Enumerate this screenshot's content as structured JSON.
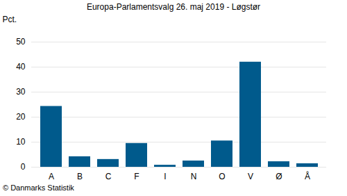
{
  "chart_data": {
    "type": "bar",
    "title": "Europa-Parlamentsvalg 26. maj 2019 - Løgstør",
    "y_label": "Pct.",
    "caption": "© Danmarks Statistik",
    "categories": [
      "A",
      "B",
      "C",
      "F",
      "I",
      "N",
      "O",
      "V",
      "Ø",
      "Å"
    ],
    "values": [
      24.3,
      4.2,
      3.1,
      9.5,
      0.8,
      2.5,
      10.5,
      42.0,
      2.2,
      1.4
    ],
    "color": "#005a8c",
    "ylim": [
      0,
      50
    ],
    "yticks": [
      0,
      10,
      20,
      30,
      40,
      50
    ],
    "grid": true
  }
}
